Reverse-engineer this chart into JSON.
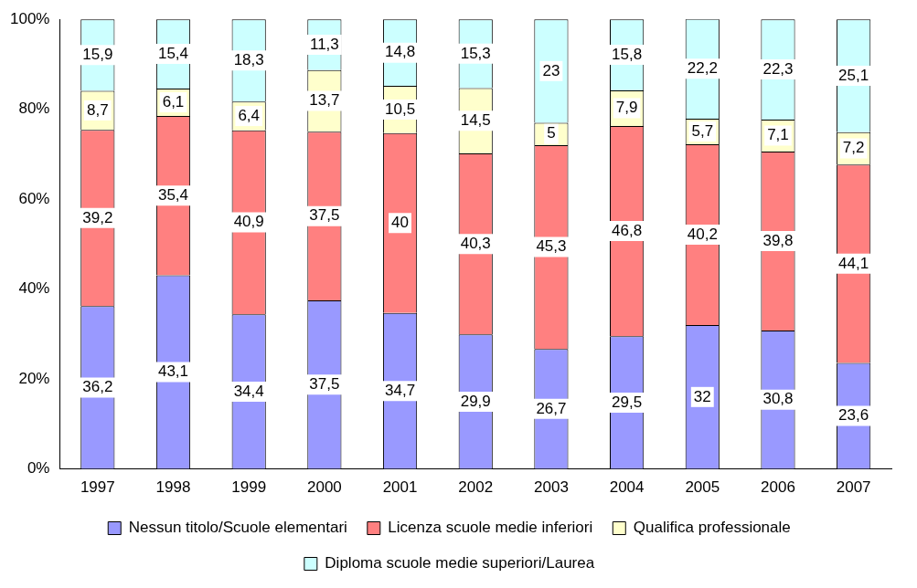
{
  "chart_data": {
    "type": "bar",
    "stacked": true,
    "categories": [
      "1997",
      "1998",
      "1999",
      "2000",
      "2001",
      "2002",
      "2003",
      "2004",
      "2005",
      "2006",
      "2007"
    ],
    "series": [
      {
        "name": "Nessun titolo/Scuole elementari",
        "color": "#9999ff",
        "values": [
          36.2,
          43.1,
          34.4,
          37.5,
          34.7,
          29.9,
          26.7,
          29.5,
          32,
          30.8,
          23.6
        ],
        "value_labels": [
          "36,2",
          "43,1",
          "34,4",
          "37,5",
          "34,7",
          "29,9",
          "26,7",
          "29,5",
          "32",
          "30,8",
          "23,6"
        ]
      },
      {
        "name": "Licenza scuole medie inferiori",
        "color": "#ff8080",
        "values": [
          39.2,
          35.4,
          40.9,
          37.5,
          40,
          40.3,
          45.3,
          46.8,
          40.2,
          39.8,
          44.1
        ],
        "value_labels": [
          "39,2",
          "35,4",
          "40,9",
          "37,5",
          "40",
          "40,3",
          "45,3",
          "46,8",
          "40,2",
          "39,8",
          "44,1"
        ]
      },
      {
        "name": "Qualifica professionale",
        "color": "#ffffcc",
        "values": [
          8.7,
          6.1,
          6.4,
          13.7,
          10.5,
          14.5,
          5,
          7.9,
          5.7,
          7.1,
          7.2
        ],
        "value_labels": [
          "8,7",
          "6,1",
          "6,4",
          "13,7",
          "10,5",
          "14,5",
          "5",
          "7,9",
          "5,7",
          "7,1",
          "7,2"
        ]
      },
      {
        "name": "Diploma scuole medie superiori/Laurea",
        "color": "#ccffff",
        "values": [
          15.9,
          15.4,
          18.3,
          11.3,
          14.8,
          15.3,
          23,
          15.8,
          22.2,
          22.3,
          25.1
        ],
        "value_labels": [
          "15,9",
          "15,4",
          "18,3",
          "11,3",
          "14,8",
          "15,3",
          "23",
          "15,8",
          "22,2",
          "22,3",
          "25,1"
        ]
      }
    ],
    "ylim": [
      0,
      100
    ],
    "yticks": [
      {
        "value": 0,
        "label": "0%"
      },
      {
        "value": 20,
        "label": "20%"
      },
      {
        "value": 40,
        "label": "40%"
      },
      {
        "value": 60,
        "label": "60%"
      },
      {
        "value": 80,
        "label": "80%"
      },
      {
        "value": 100,
        "label": "100%"
      }
    ],
    "legend": "bottom"
  }
}
